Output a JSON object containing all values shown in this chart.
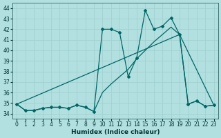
{
  "xlabel": "Humidex (Indice chaleur)",
  "background_color": "#b2dfdf",
  "grid_color": "#9ecece",
  "line_color": "#006666",
  "xlim": [
    -0.5,
    23.5
  ],
  "ylim": [
    33.5,
    44.5
  ],
  "yticks": [
    34,
    35,
    36,
    37,
    38,
    39,
    40,
    41,
    42,
    43,
    44
  ],
  "xticks": [
    0,
    1,
    2,
    3,
    4,
    5,
    6,
    7,
    8,
    9,
    10,
    11,
    12,
    13,
    14,
    15,
    16,
    17,
    18,
    19,
    20,
    21,
    22,
    23
  ],
  "series1_x": [
    0,
    1,
    2,
    3,
    4,
    5,
    6,
    7,
    8,
    9,
    10,
    11,
    12,
    13,
    14,
    15,
    16,
    17,
    18,
    19,
    20,
    21,
    22,
    23
  ],
  "series1_y": [
    34.9,
    34.3,
    34.3,
    34.5,
    34.6,
    34.6,
    34.5,
    34.8,
    34.6,
    34.2,
    36.0,
    36.8,
    37.5,
    38.2,
    39.2,
    40.0,
    40.8,
    41.5,
    42.2,
    41.5,
    34.9,
    35.2,
    34.7,
    34.8
  ],
  "series2_x": [
    0,
    1,
    2,
    3,
    4,
    5,
    6,
    7,
    8,
    9,
    10,
    11,
    12,
    13,
    14,
    15,
    16,
    17,
    18,
    19,
    20,
    21,
    22,
    23
  ],
  "series2_y": [
    34.9,
    34.3,
    34.3,
    34.5,
    34.6,
    34.6,
    34.5,
    34.8,
    34.6,
    34.2,
    42.0,
    42.0,
    41.7,
    37.5,
    39.3,
    43.8,
    42.0,
    42.3,
    43.1,
    41.5,
    34.9,
    35.2,
    34.7,
    34.8
  ],
  "series3_x": [
    0,
    19,
    23
  ],
  "series3_y": [
    34.9,
    41.5,
    34.8
  ]
}
